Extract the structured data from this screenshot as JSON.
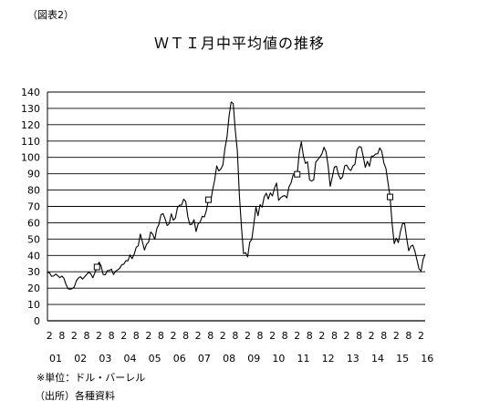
{
  "figure_label": "（図表2）",
  "notes": {
    "unit": "※単位：ドル・バーレル",
    "source": "（出所）各種資料"
  },
  "chart_data": {
    "type": "line",
    "title": "ＷＴＩ月中平均値の推移",
    "ylim": [
      0,
      140
    ],
    "y_ticks": [
      0,
      10,
      20,
      30,
      40,
      50,
      60,
      70,
      80,
      90,
      100,
      110,
      120,
      130,
      140
    ],
    "grid": true,
    "month_tick_labels": [
      "2",
      "8",
      "2",
      "8",
      "2",
      "8",
      "2",
      "8",
      "2",
      "8",
      "2",
      "8",
      "2",
      "8",
      "2",
      "8",
      "2",
      "8",
      "2",
      "8",
      "2",
      "8",
      "2",
      "8",
      "2",
      "8",
      "2",
      "8",
      "2",
      "8",
      "2"
    ],
    "year_labels": [
      "01",
      "02",
      "03",
      "04",
      "05",
      "06",
      "07",
      "08",
      "09",
      "10",
      "11",
      "12",
      "13",
      "14",
      "15",
      "16"
    ],
    "x_start": "2001-01",
    "x_end": "2016-03",
    "series": [
      {
        "values": [
          29.6,
          29.4,
          27.2,
          27.4,
          28.6,
          27.6,
          26.4,
          27.4,
          26.0,
          22.2,
          19.6,
          19.3,
          19.7,
          20.7,
          24.4,
          26.2,
          27.0,
          25.5,
          26.9,
          28.4,
          29.7,
          28.8,
          26.3,
          29.4,
          32.9,
          35.9,
          33.5,
          28.3,
          28.1,
          30.7,
          30.8,
          31.6,
          28.3,
          30.3,
          31.1,
          32.1,
          34.3,
          34.7,
          36.8,
          36.7,
          40.3,
          38.0,
          40.7,
          44.9,
          46.0,
          53.1,
          48.4,
          43.3,
          46.8,
          48.1,
          54.3,
          53.0,
          49.8,
          56.4,
          59.0,
          64.9,
          65.6,
          62.4,
          58.3,
          59.4,
          65.5,
          61.6,
          62.9,
          69.4,
          70.8,
          70.9,
          74.4,
          73.0,
          63.8,
          58.9,
          59.1,
          61.9,
          54.6,
          59.3,
          60.4,
          64.0,
          63.5,
          67.5,
          74.1,
          72.4,
          79.9,
          86.0,
          94.8,
          91.7,
          92.9,
          95.4,
          105.5,
          112.6,
          125.4,
          133.9,
          133.0,
          116.7,
          104.1,
          76.6,
          57.3,
          41.1,
          41.7,
          39.1,
          48.0,
          49.8,
          59.2,
          69.7,
          64.3,
          71.1,
          69.5,
          75.8,
          78.1,
          74.5,
          78.3,
          76.4,
          81.2,
          84.3,
          73.7,
          75.3,
          76.3,
          76.6,
          75.2,
          81.9,
          84.3,
          89.2,
          89.6,
          89.7,
          102.9,
          109.5,
          100.9,
          96.3,
          97.3,
          86.3,
          85.5,
          86.3,
          97.2,
          98.6,
          100.3,
          102.2,
          106.2,
          103.3,
          94.7,
          82.3,
          87.9,
          94.1,
          94.5,
          89.5,
          86.7,
          88.2,
          94.8,
          95.3,
          92.9,
          92.0,
          94.8,
          95.8,
          104.6,
          106.6,
          106.3,
          100.5,
          93.9,
          97.6,
          94.6,
          100.8,
          100.8,
          102.1,
          102.2,
          105.8,
          103.6,
          96.5,
          93.2,
          84.4,
          75.8,
          59.3,
          47.2,
          50.6,
          47.8,
          54.5,
          59.3,
          59.8,
          50.9,
          42.9,
          45.5,
          46.3,
          42.7,
          37.3,
          31.8,
          30.3,
          37.6,
          40.8
        ]
      }
    ],
    "markers_at_index": [
      24,
      78,
      121,
      166
    ]
  }
}
